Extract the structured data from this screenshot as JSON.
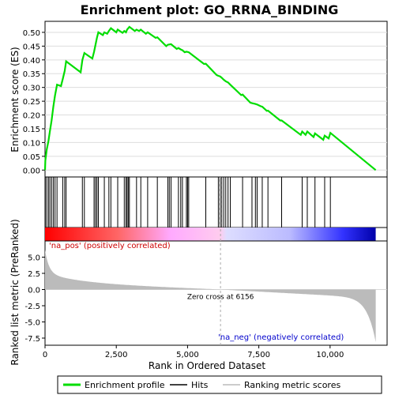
{
  "chart_data": {
    "type": "line",
    "title": "Enrichment plot: GO_RRNA_BINDING",
    "x_label": "Rank in Ordered Dataset",
    "es_ylabel": "Enrichment score (ES)",
    "metric_ylabel": "Ranked list metric (PreRanked)",
    "x_range": [
      0,
      12000
    ],
    "x_ticks": [
      0,
      2500,
      5000,
      7500,
      10000
    ],
    "x_tick_labels": [
      "0",
      "2,500",
      "5,000",
      "7,500",
      "10,000"
    ],
    "es_range": [
      -0.025,
      0.54
    ],
    "es_ticks": [
      0.0,
      0.05,
      0.1,
      0.15,
      0.2,
      0.25,
      0.3,
      0.35,
      0.4,
      0.45,
      0.5
    ],
    "es_tick_labels": [
      "0.00",
      "0.05",
      "0.10",
      "0.15",
      "0.20",
      "0.25",
      "0.30",
      "0.35",
      "0.40",
      "0.45",
      "0.50"
    ],
    "metric_range": [
      -8.6,
      7.5
    ],
    "metric_ticks": [
      5.0,
      2.5,
      0.0,
      -2.5,
      -5.0,
      -7.5
    ],
    "metric_tick_labels": [
      "5.0",
      "2.5",
      "0.0",
      "-2.5",
      "-5.0",
      "-7.5"
    ],
    "total_genes": 11600,
    "zero_cross_rank": 6156,
    "zero_cross_label": "Zero cross at 6156",
    "pos_label": "'na_pos' (positively correlated)",
    "neg_label": "'na_neg' (negatively correlated)",
    "legend_position": "bottom",
    "legend": [
      {
        "label": "Enrichment profile",
        "color": "#00dd00"
      },
      {
        "label": "Hits",
        "color": "#000000"
      },
      {
        "label": "Ranking metric scores",
        "color": "#bbbbbb"
      }
    ],
    "colors": {
      "es_line": "#00dd00",
      "hits": "#000000",
      "metric_fill": "#bbbbbb",
      "zero_line": "#aaaaaa",
      "pos_text": "#cc0000",
      "neg_text": "#0000cc",
      "heat_red": "#ff0000",
      "heat_blue": "#0000cc"
    },
    "hits": [
      10,
      60,
      120,
      170,
      230,
      290,
      350,
      420,
      620,
      690,
      740,
      1310,
      1380,
      1720,
      1770,
      1820,
      1870,
      2080,
      2240,
      2310,
      2550,
      2780,
      2840,
      2880,
      2920,
      2960,
      3210,
      3360,
      3600,
      3940,
      4310,
      4360,
      4420,
      4680,
      4760,
      4820,
      4960,
      5000,
      5040,
      5640,
      6080,
      6140,
      6200,
      6270,
      6340,
      6420,
      6500,
      6930,
      7260,
      7380,
      7440,
      7620,
      7820,
      8300,
      9020,
      9200,
      9470,
      9810,
      10010
    ],
    "es_profile": [
      [
        0,
        0.0
      ],
      [
        10,
        0.035
      ],
      [
        60,
        0.075
      ],
      [
        120,
        0.105
      ],
      [
        170,
        0.14
      ],
      [
        230,
        0.18
      ],
      [
        290,
        0.23
      ],
      [
        350,
        0.27
      ],
      [
        420,
        0.31
      ],
      [
        560,
        0.305
      ],
      [
        620,
        0.33
      ],
      [
        690,
        0.36
      ],
      [
        740,
        0.395
      ],
      [
        1250,
        0.355
      ],
      [
        1310,
        0.4
      ],
      [
        1380,
        0.425
      ],
      [
        1660,
        0.405
      ],
      [
        1720,
        0.43
      ],
      [
        1770,
        0.455
      ],
      [
        1820,
        0.48
      ],
      [
        1870,
        0.5
      ],
      [
        2030,
        0.49
      ],
      [
        2080,
        0.5
      ],
      [
        2180,
        0.495
      ],
      [
        2240,
        0.505
      ],
      [
        2310,
        0.515
      ],
      [
        2500,
        0.5
      ],
      [
        2550,
        0.51
      ],
      [
        2720,
        0.498
      ],
      [
        2780,
        0.505
      ],
      [
        2840,
        0.5
      ],
      [
        2880,
        0.51
      ],
      [
        2920,
        0.515
      ],
      [
        2960,
        0.52
      ],
      [
        3150,
        0.505
      ],
      [
        3210,
        0.51
      ],
      [
        3300,
        0.505
      ],
      [
        3360,
        0.51
      ],
      [
        3540,
        0.495
      ],
      [
        3600,
        0.5
      ],
      [
        3880,
        0.48
      ],
      [
        3940,
        0.482
      ],
      [
        4250,
        0.45
      ],
      [
        4310,
        0.455
      ],
      [
        4420,
        0.457
      ],
      [
        4620,
        0.44
      ],
      [
        4680,
        0.443
      ],
      [
        4760,
        0.438
      ],
      [
        4820,
        0.435
      ],
      [
        4900,
        0.428
      ],
      [
        4960,
        0.43
      ],
      [
        5040,
        0.428
      ],
      [
        5580,
        0.385
      ],
      [
        5640,
        0.386
      ],
      [
        6020,
        0.345
      ],
      [
        6080,
        0.342
      ],
      [
        6140,
        0.34
      ],
      [
        6200,
        0.335
      ],
      [
        6270,
        0.328
      ],
      [
        6340,
        0.322
      ],
      [
        6420,
        0.318
      ],
      [
        6500,
        0.31
      ],
      [
        6880,
        0.272
      ],
      [
        6930,
        0.274
      ],
      [
        7200,
        0.245
      ],
      [
        7260,
        0.243
      ],
      [
        7380,
        0.24
      ],
      [
        7440,
        0.238
      ],
      [
        7560,
        0.232
      ],
      [
        7620,
        0.23
      ],
      [
        7780,
        0.215
      ],
      [
        7820,
        0.216
      ],
      [
        8250,
        0.18
      ],
      [
        8300,
        0.18
      ],
      [
        8970,
        0.128
      ],
      [
        9020,
        0.14
      ],
      [
        9140,
        0.128
      ],
      [
        9200,
        0.14
      ],
      [
        9420,
        0.12
      ],
      [
        9470,
        0.133
      ],
      [
        9760,
        0.11
      ],
      [
        9810,
        0.125
      ],
      [
        9950,
        0.115
      ],
      [
        10010,
        0.135
      ],
      [
        11600,
        0.0
      ]
    ]
  }
}
